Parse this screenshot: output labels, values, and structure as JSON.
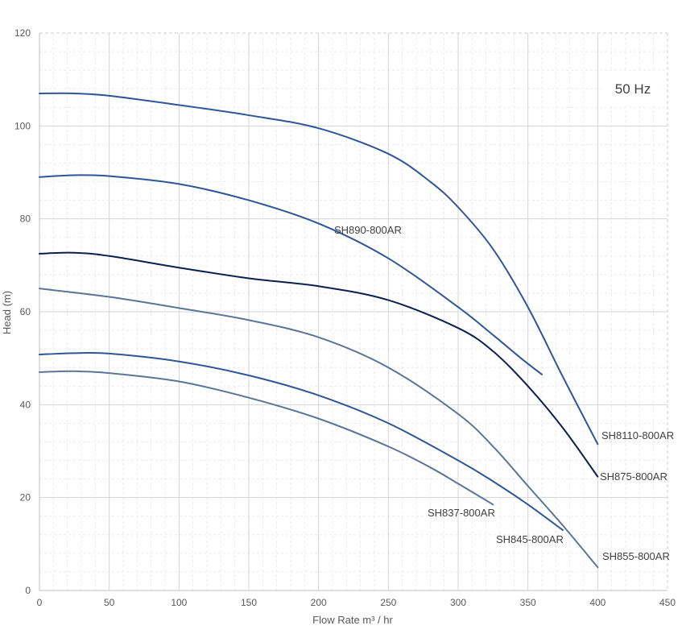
{
  "chart_data": {
    "type": "line",
    "title": "",
    "annotation": "50 Hz",
    "xlabel": "Flow Rate m³ / hr",
    "ylabel": "Head (m)",
    "xlim": [
      0,
      450
    ],
    "ylim": [
      0,
      120
    ],
    "x_ticks": [
      "0",
      "50",
      "100",
      "150",
      "200",
      "250",
      "300",
      "350",
      "400",
      "450"
    ],
    "y_ticks": [
      "0",
      "20",
      "40",
      "60",
      "80",
      "100",
      "120"
    ],
    "grid": true,
    "series": [
      {
        "name": "SH8110-800AR",
        "color": "#2f5597",
        "points": [
          [
            0,
            107
          ],
          [
            25,
            107
          ],
          [
            50,
            106.5
          ],
          [
            100,
            104.5
          ],
          [
            150,
            102.3
          ],
          [
            200,
            99.5
          ],
          [
            250,
            94
          ],
          [
            280,
            88
          ],
          [
            300,
            82.5
          ],
          [
            325,
            73.5
          ],
          [
            350,
            61
          ],
          [
            375,
            46
          ],
          [
            400,
            31.5
          ]
        ]
      },
      {
        "name": "SH890-800AR",
        "color": "#2f5597",
        "points": [
          [
            0,
            89
          ],
          [
            25,
            89.4
          ],
          [
            50,
            89.2
          ],
          [
            100,
            87.5
          ],
          [
            150,
            84
          ],
          [
            200,
            79
          ],
          [
            250,
            71.5
          ],
          [
            300,
            61
          ],
          [
            325,
            55
          ],
          [
            345,
            50
          ],
          [
            360,
            46.5
          ]
        ]
      },
      {
        "name": "SH875-800AR",
        "color": "#0d1f4f",
        "points": [
          [
            0,
            72.5
          ],
          [
            25,
            72.7
          ],
          [
            50,
            72
          ],
          [
            100,
            69.5
          ],
          [
            150,
            67.2
          ],
          [
            200,
            65.5
          ],
          [
            250,
            62.5
          ],
          [
            300,
            56.5
          ],
          [
            325,
            51.5
          ],
          [
            350,
            44
          ],
          [
            375,
            35
          ],
          [
            400,
            24.5
          ]
        ]
      },
      {
        "name": "SH855-800AR",
        "color": "#5b7596",
        "points": [
          [
            0,
            65
          ],
          [
            50,
            63.2
          ],
          [
            100,
            60.8
          ],
          [
            150,
            58.2
          ],
          [
            200,
            54.5
          ],
          [
            250,
            48
          ],
          [
            300,
            38
          ],
          [
            325,
            31
          ],
          [
            350,
            22.5
          ],
          [
            375,
            14
          ],
          [
            400,
            5
          ]
        ]
      },
      {
        "name": "SH845-800AR",
        "color": "#2f5597",
        "points": [
          [
            0,
            50.8
          ],
          [
            25,
            51.1
          ],
          [
            50,
            51
          ],
          [
            100,
            49.3
          ],
          [
            150,
            46.3
          ],
          [
            200,
            42
          ],
          [
            250,
            36
          ],
          [
            300,
            28
          ],
          [
            325,
            23.5
          ],
          [
            350,
            18.5
          ],
          [
            375,
            13
          ]
        ]
      },
      {
        "name": "SH837-800AR",
        "color": "#5b7596",
        "points": [
          [
            0,
            47
          ],
          [
            25,
            47.2
          ],
          [
            50,
            46.8
          ],
          [
            100,
            45
          ],
          [
            150,
            41.5
          ],
          [
            200,
            37
          ],
          [
            250,
            31
          ],
          [
            280,
            26.5
          ],
          [
            300,
            23
          ],
          [
            325,
            18.5
          ]
        ]
      }
    ]
  }
}
